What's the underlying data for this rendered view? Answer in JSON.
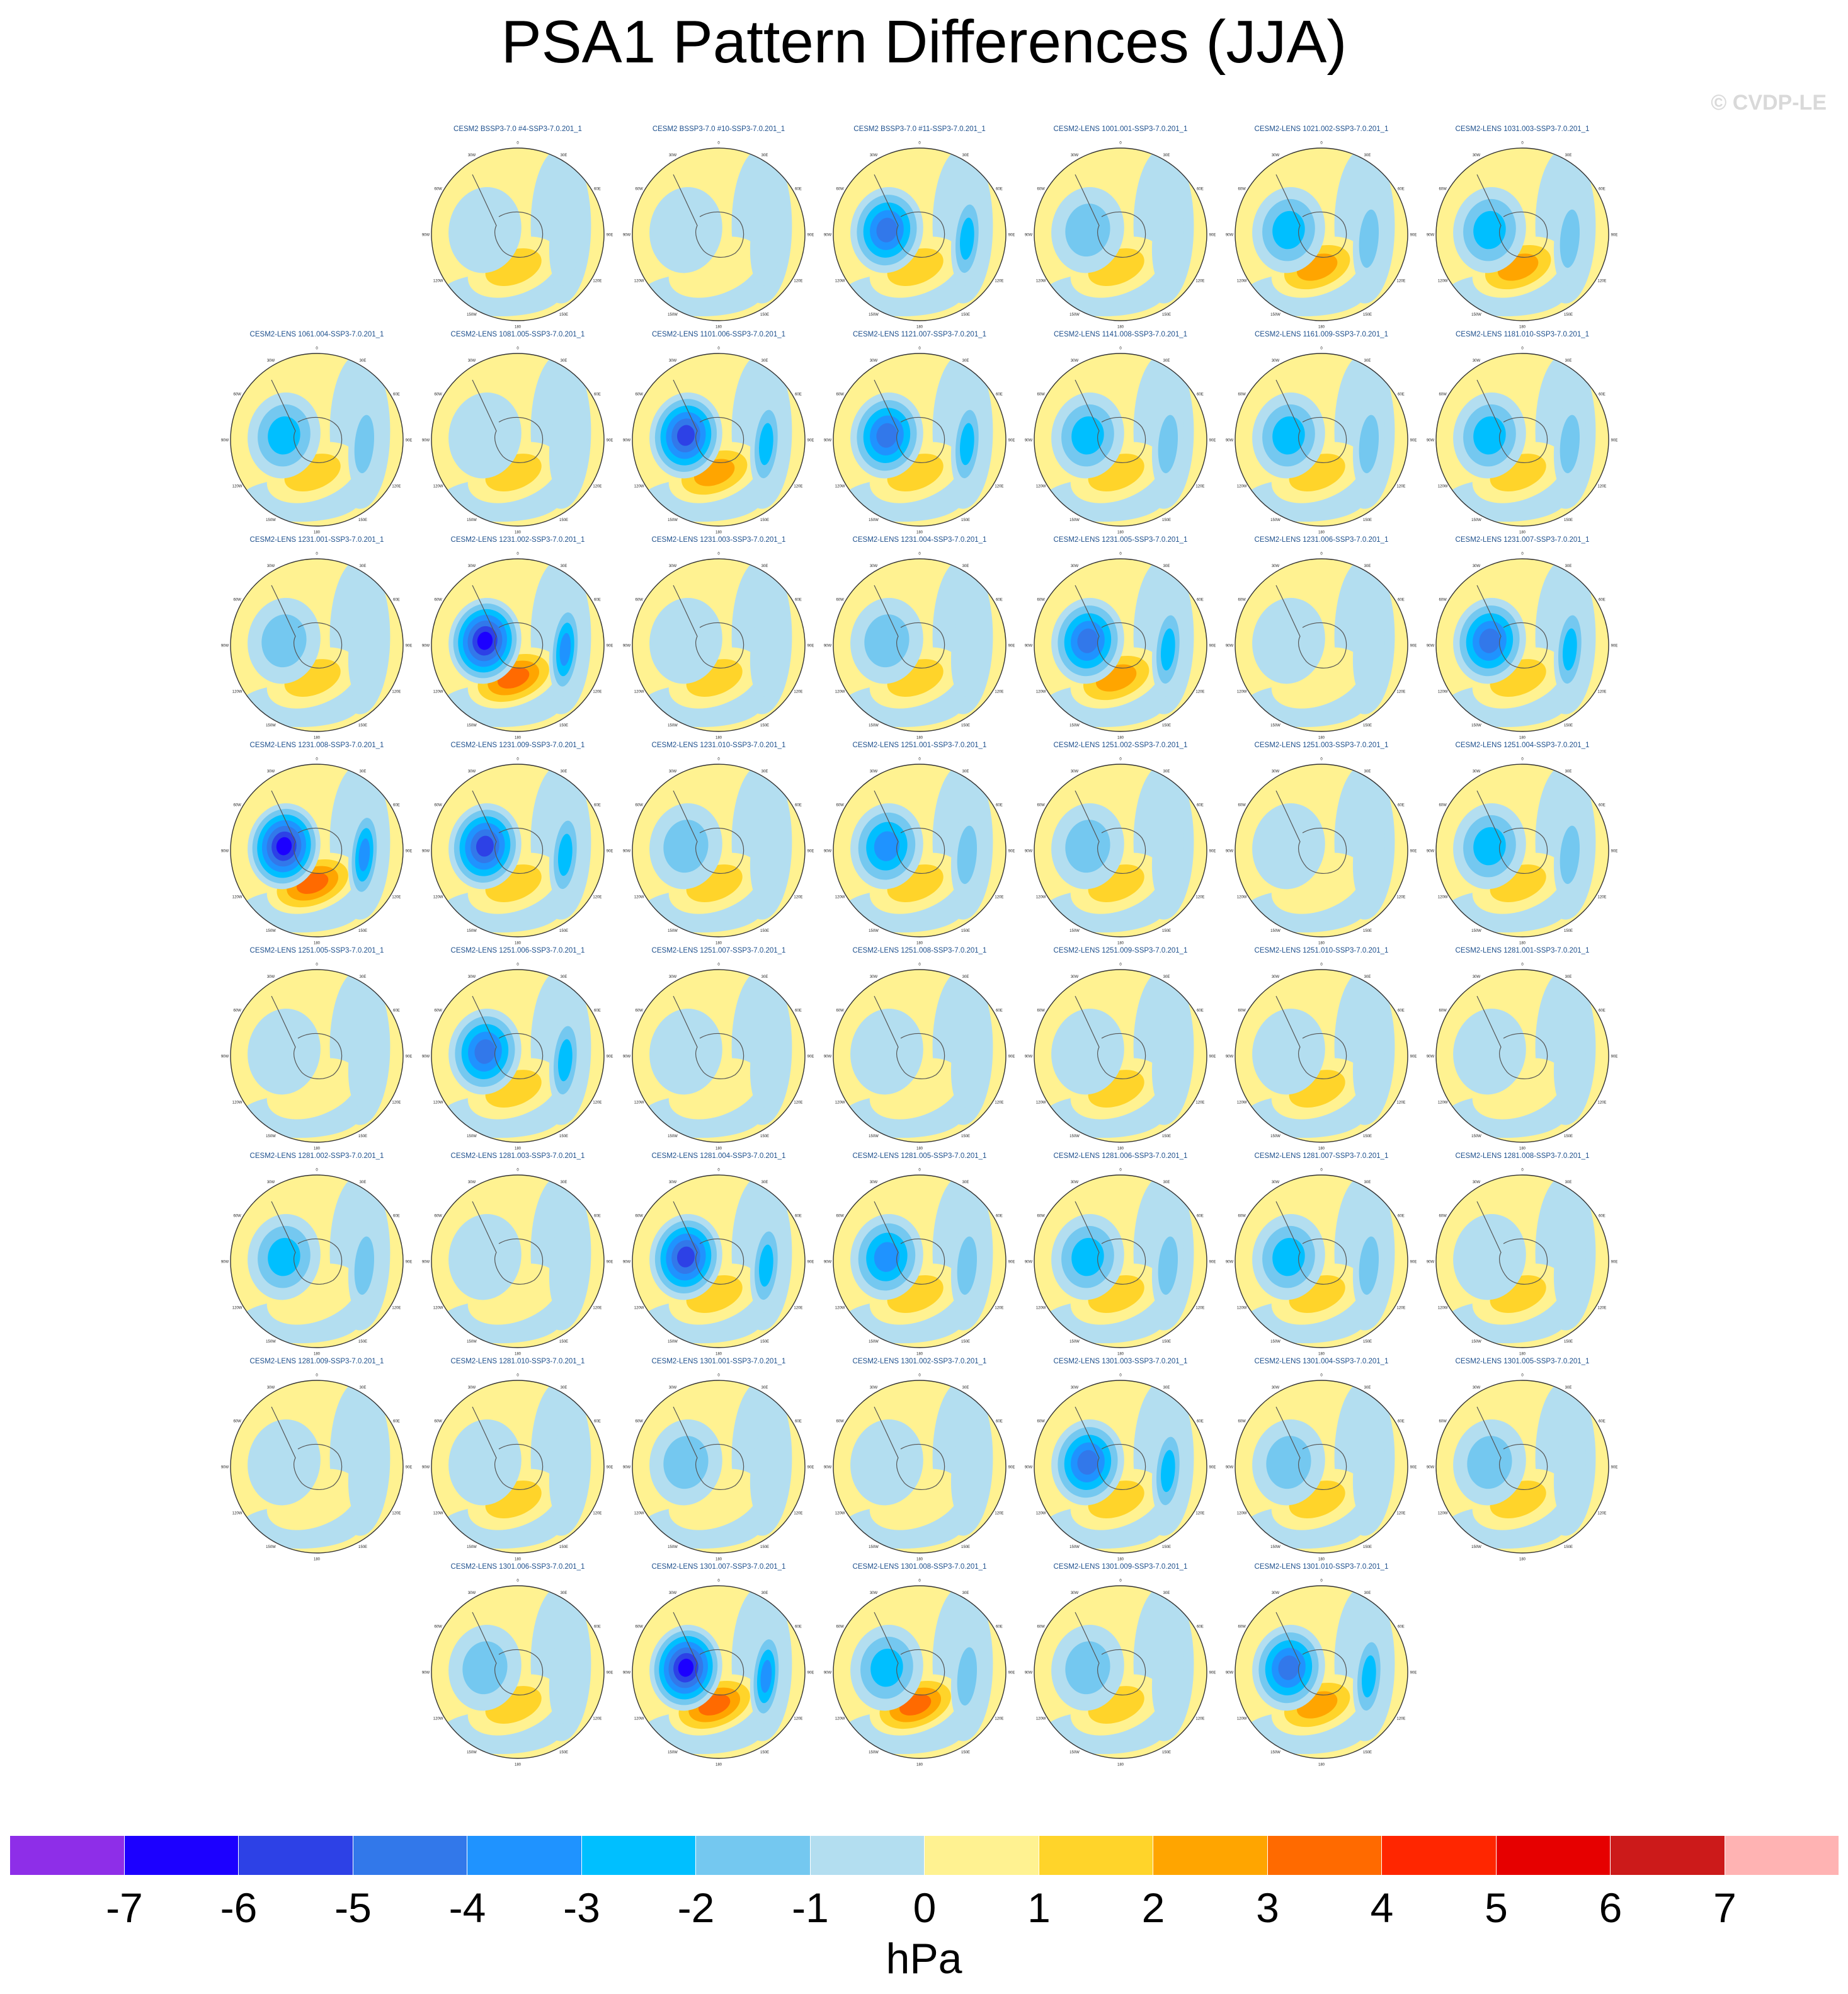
{
  "title": "PSA1 Pattern Differences (JJA)",
  "watermark": "© CVDP-LE",
  "units": "hPa",
  "lon_labels": [
    "0",
    "30E",
    "60E",
    "90E",
    "120E",
    "150E",
    "180",
    "150W",
    "120W",
    "90W",
    "60W",
    "30W"
  ],
  "chart_data": {
    "type": "heatmap",
    "projection": "south polar stereographic",
    "variable": "PSA1 pattern difference",
    "season": "JJA",
    "units": "hPa",
    "levels": [
      -7,
      -6,
      -5,
      -4,
      -3,
      -2,
      -1,
      0,
      1,
      2,
      3,
      4,
      5,
      6,
      7
    ],
    "colors": [
      "#8e2ee8",
      "#1c00ff",
      "#2d41e6",
      "#3278ea",
      "#1f93ff",
      "#00bfff",
      "#74c8f0",
      "#b3def0",
      "#fff291",
      "#ffd42a",
      "#ffa500",
      "#ff6a00",
      "#ff2600",
      "#e60000",
      "#cc1a1a",
      "#ffb3b3"
    ],
    "panel_rows": [
      [
        "CESM2 BSSP3-7.0 #4-SSP3-7.0.201_1",
        "CESM2 BSSP3-7.0 #10-SSP3-7.0.201_1",
        "CESM2 BSSP3-7.0 #11-SSP3-7.0.201_1",
        "CESM2-LENS 1001.001-SSP3-7.0.201_1",
        "CESM2-LENS 1021.002-SSP3-7.0.201_1",
        "CESM2-LENS 1031.003-SSP3-7.0.201_1"
      ],
      [
        "CESM2-LENS 1061.004-SSP3-7.0.201_1",
        "CESM2-LENS 1081.005-SSP3-7.0.201_1",
        "CESM2-LENS 1101.006-SSP3-7.0.201_1",
        "CESM2-LENS 1121.007-SSP3-7.0.201_1",
        "CESM2-LENS 1141.008-SSP3-7.0.201_1",
        "CESM2-LENS 1161.009-SSP3-7.0.201_1",
        "CESM2-LENS 1181.010-SSP3-7.0.201_1"
      ],
      [
        "CESM2-LENS 1231.001-SSP3-7.0.201_1",
        "CESM2-LENS 1231.002-SSP3-7.0.201_1",
        "CESM2-LENS 1231.003-SSP3-7.0.201_1",
        "CESM2-LENS 1231.004-SSP3-7.0.201_1",
        "CESM2-LENS 1231.005-SSP3-7.0.201_1",
        "CESM2-LENS 1231.006-SSP3-7.0.201_1",
        "CESM2-LENS 1231.007-SSP3-7.0.201_1"
      ],
      [
        "CESM2-LENS 1231.008-SSP3-7.0.201_1",
        "CESM2-LENS 1231.009-SSP3-7.0.201_1",
        "CESM2-LENS 1231.010-SSP3-7.0.201_1",
        "CESM2-LENS 1251.001-SSP3-7.0.201_1",
        "CESM2-LENS 1251.002-SSP3-7.0.201_1",
        "CESM2-LENS 1251.003-SSP3-7.0.201_1",
        "CESM2-LENS 1251.004-SSP3-7.0.201_1"
      ],
      [
        "CESM2-LENS 1251.005-SSP3-7.0.201_1",
        "CESM2-LENS 1251.006-SSP3-7.0.201_1",
        "CESM2-LENS 1251.007-SSP3-7.0.201_1",
        "CESM2-LENS 1251.008-SSP3-7.0.201_1",
        "CESM2-LENS 1251.009-SSP3-7.0.201_1",
        "CESM2-LENS 1251.010-SSP3-7.0.201_1",
        "CESM2-LENS 1281.001-SSP3-7.0.201_1"
      ],
      [
        "CESM2-LENS 1281.002-SSP3-7.0.201_1",
        "CESM2-LENS 1281.003-SSP3-7.0.201_1",
        "CESM2-LENS 1281.004-SSP3-7.0.201_1",
        "CESM2-LENS 1281.005-SSP3-7.0.201_1",
        "CESM2-LENS 1281.006-SSP3-7.0.201_1",
        "CESM2-LENS 1281.007-SSP3-7.0.201_1",
        "CESM2-LENS 1281.008-SSP3-7.0.201_1"
      ],
      [
        "CESM2-LENS 1281.009-SSP3-7.0.201_1",
        "CESM2-LENS 1281.010-SSP3-7.0.201_1",
        "CESM2-LENS 1301.001-SSP3-7.0.201_1",
        "CESM2-LENS 1301.002-SSP3-7.0.201_1",
        "CESM2-LENS 1301.003-SSP3-7.0.201_1",
        "CESM2-LENS 1301.004-SSP3-7.0.201_1",
        "CESM2-LENS 1301.005-SSP3-7.0.201_1"
      ],
      [
        "CESM2-LENS 1301.006-SSP3-7.0.201_1",
        "CESM2-LENS 1301.007-SSP3-7.0.201_1",
        "CESM2-LENS 1301.008-SSP3-7.0.201_1",
        "CESM2-LENS 1301.009-SSP3-7.0.201_1",
        "CESM2-LENS 1301.010-SSP3-7.0.201_1"
      ]
    ],
    "row_first_column": [
      1,
      0,
      0,
      0,
      0,
      0,
      0,
      1
    ],
    "panel_minima": [
      [
        -1,
        -1,
        -5,
        -2,
        -3,
        -3
      ],
      [
        -3,
        -1,
        -6,
        -5,
        -3,
        -3,
        -3
      ],
      [
        -2,
        -7,
        -1,
        -2,
        -5,
        -1,
        -5
      ],
      [
        -7,
        -6,
        -2,
        -4,
        -2,
        -1,
        -3
      ],
      [
        -1,
        -5,
        -1,
        -1,
        -1,
        -1,
        -1
      ],
      [
        -3,
        -1,
        -6,
        -4,
        -3,
        -3,
        -1
      ],
      [
        -1,
        -1,
        -2,
        -1,
        -5,
        -2,
        -2
      ],
      [
        -2,
        -7,
        -3,
        -2,
        -5
      ]
    ],
    "panel_maxima": [
      [
        2,
        1,
        2,
        2,
        3,
        3
      ],
      [
        2,
        2,
        3,
        2,
        2,
        2,
        2
      ],
      [
        2,
        4,
        2,
        2,
        3,
        1,
        2
      ],
      [
        4,
        2,
        2,
        2,
        2,
        1,
        2
      ],
      [
        1,
        2,
        1,
        1,
        2,
        2,
        1
      ],
      [
        1,
        1,
        2,
        2,
        2,
        2,
        2
      ],
      [
        1,
        2,
        1,
        1,
        2,
        2,
        2
      ],
      [
        2,
        4,
        4,
        2,
        3
      ]
    ],
    "colorbar_ticks": [
      "-7",
      "-6",
      "-5",
      "-4",
      "-3",
      "-2",
      "-1",
      "0",
      "1",
      "2",
      "3",
      "4",
      "5",
      "6",
      "7"
    ]
  }
}
